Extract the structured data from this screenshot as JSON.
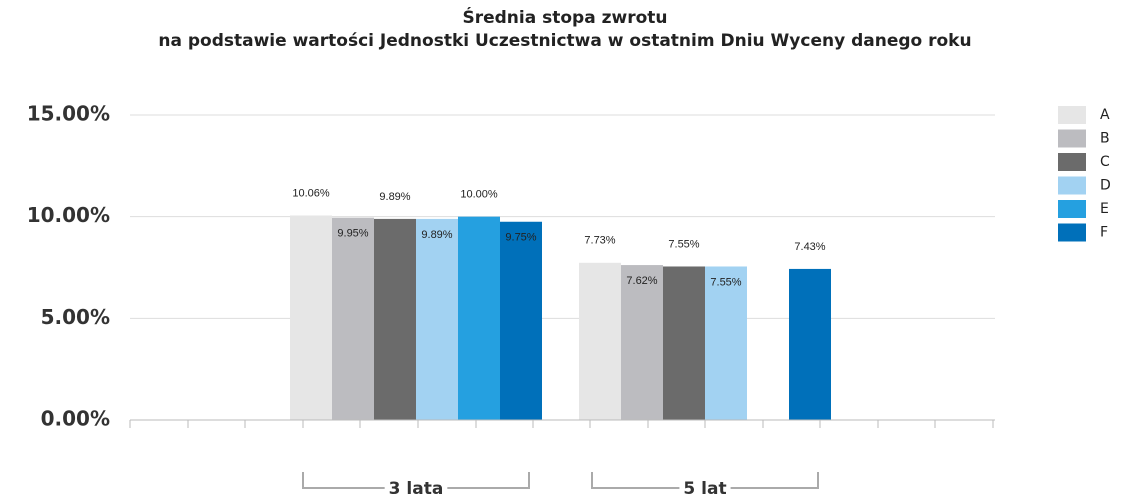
{
  "chart_data": {
    "type": "bar",
    "title": "Średnia stopa zwrotu",
    "subtitle": "na podstawie wartości Jednostki Uczestnictwa w ostatnim Dniu Wyceny danego roku",
    "categories": [
      "3 lata",
      "5 lat"
    ],
    "series": [
      {
        "name": "A",
        "color": "#e6e6e6",
        "values": [
          10.06,
          7.73
        ],
        "value_labels": [
          "10.06%",
          "7.73%"
        ]
      },
      {
        "name": "B",
        "color": "#bcbcc0",
        "values": [
          9.95,
          7.62
        ],
        "value_labels": [
          "9.95%",
          "7.62%"
        ]
      },
      {
        "name": "C",
        "color": "#6b6b6b",
        "values": [
          9.89,
          7.55
        ],
        "value_labels": [
          "9.89%",
          "7.55%"
        ]
      },
      {
        "name": "D",
        "color": "#a2d2f2",
        "values": [
          9.89,
          7.55
        ],
        "value_labels": [
          "9.89%",
          "7.55%"
        ]
      },
      {
        "name": "E",
        "color": "#25a0e0",
        "values": [
          10.0,
          null
        ],
        "value_labels": [
          "10.00%",
          null
        ]
      },
      {
        "name": "F",
        "color": "#0070ba",
        "values": [
          9.75,
          7.43
        ],
        "value_labels": [
          "9.75%",
          "7.43%"
        ]
      }
    ],
    "ylim": [
      0,
      15
    ],
    "yticks": [
      {
        "value": 0,
        "label": "0.00%"
      },
      {
        "value": 5,
        "label": "5.00%"
      },
      {
        "value": 10,
        "label": "10.00%"
      },
      {
        "value": 15,
        "label": "15.00%"
      }
    ],
    "grid": true,
    "legend": "right"
  }
}
